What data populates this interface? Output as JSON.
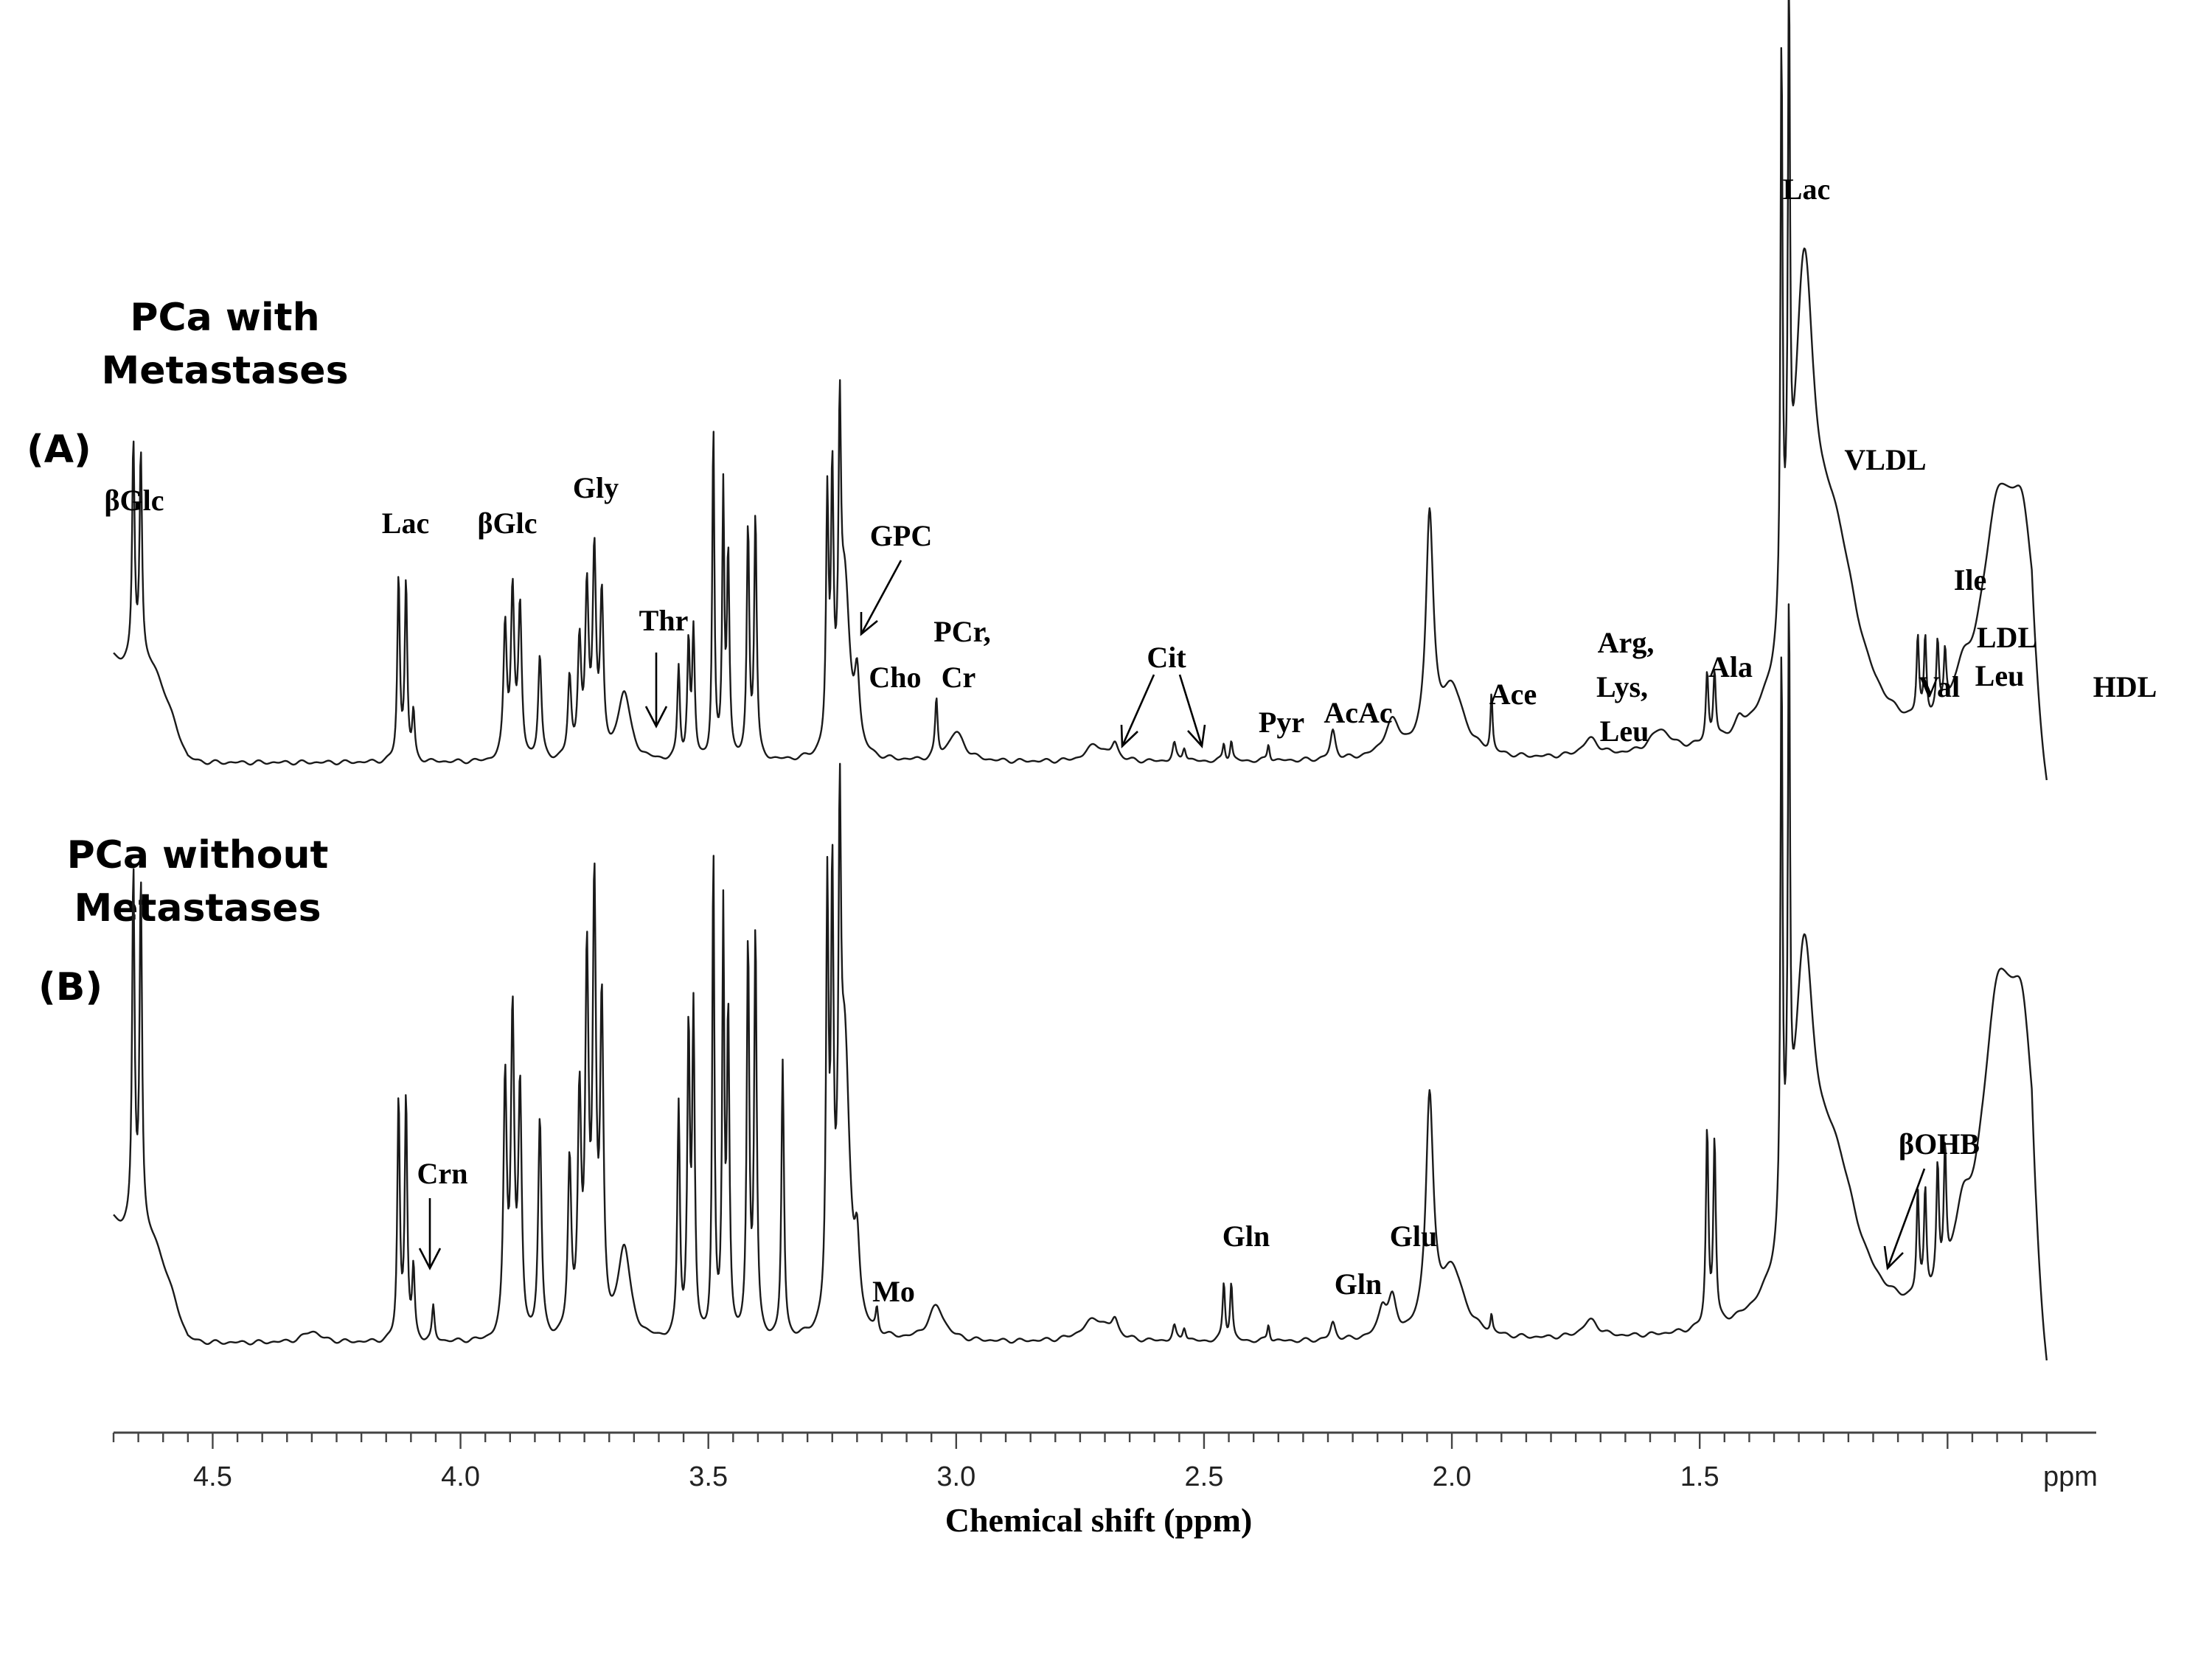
{
  "chart_data": {
    "type": "line",
    "xlabel": "Chemical shift (ppm)",
    "x_unit_label": "ppm",
    "x_reversed": true,
    "xlim": [
      4.7,
      0.7
    ],
    "x_ticks": [
      4.5,
      4.0,
      3.5,
      3.0,
      2.5,
      2.0,
      1.5
    ],
    "x_tick_labels": [
      "4.5",
      "4.0",
      "3.5",
      "3.0",
      "2.5",
      "2.0",
      "1.5"
    ],
    "y_axis_shown": false,
    "series": [
      {
        "name": "PCa with Metastases",
        "panel": "(A)",
        "title_lines": [
          "PCa with",
          "Metastases"
        ],
        "baseline": 0.03,
        "peaks": [
          [
            4.66,
            0.38,
            0.003
          ],
          [
            4.645,
            0.36,
            0.003
          ],
          [
            4.125,
            0.32,
            0.003
          ],
          [
            4.11,
            0.31,
            0.003
          ],
          [
            4.095,
            0.08,
            0.003
          ],
          [
            3.91,
            0.23,
            0.004
          ],
          [
            3.895,
            0.29,
            0.004
          ],
          [
            3.88,
            0.26,
            0.004
          ],
          [
            3.84,
            0.18,
            0.004
          ],
          [
            3.78,
            0.14,
            0.004
          ],
          [
            3.76,
            0.2,
            0.004
          ],
          [
            3.745,
            0.28,
            0.004
          ],
          [
            3.73,
            0.35,
            0.004
          ],
          [
            3.715,
            0.27,
            0.004
          ],
          [
            3.67,
            0.12,
            0.015
          ],
          [
            3.56,
            0.16,
            0.003
          ],
          [
            3.54,
            0.2,
            0.003
          ],
          [
            3.53,
            0.22,
            0.003
          ],
          [
            3.49,
            0.58,
            0.0025
          ],
          [
            3.47,
            0.46,
            0.0025
          ],
          [
            3.46,
            0.35,
            0.003
          ],
          [
            3.42,
            0.4,
            0.003
          ],
          [
            3.405,
            0.42,
            0.003
          ],
          [
            3.26,
            0.42,
            0.003
          ],
          [
            3.25,
            0.44,
            0.003
          ],
          [
            3.235,
            0.47,
            0.003
          ],
          [
            3.225,
            0.3,
            0.012
          ],
          [
            3.2,
            0.12,
            0.006
          ],
          [
            3.04,
            0.1,
            0.003
          ],
          [
            3.0,
            0.05,
            0.02
          ],
          [
            2.72,
            0.03,
            0.02
          ],
          [
            2.68,
            0.03,
            0.008
          ],
          [
            2.56,
            0.03,
            0.004
          ],
          [
            2.54,
            0.025,
            0.004
          ],
          [
            2.46,
            0.03,
            0.003
          ],
          [
            2.445,
            0.035,
            0.003
          ],
          [
            2.37,
            0.03,
            0.003
          ],
          [
            2.24,
            0.05,
            0.006
          ],
          [
            2.12,
            0.06,
            0.02
          ],
          [
            2.045,
            0.4,
            0.009
          ],
          [
            2.0,
            0.12,
            0.03
          ],
          [
            1.92,
            0.1,
            0.0025
          ],
          [
            1.72,
            0.03,
            0.02
          ],
          [
            1.58,
            0.04,
            0.025
          ],
          [
            1.485,
            0.12,
            0.003
          ],
          [
            1.47,
            0.12,
            0.003
          ],
          [
            1.42,
            0.02,
            0.01
          ],
          [
            1.335,
            1.0,
            0.0025
          ],
          [
            1.32,
            0.98,
            0.0025
          ],
          [
            1.29,
            0.7,
            0.025
          ],
          [
            1.23,
            0.35,
            0.06
          ],
          [
            1.06,
            0.14,
            0.003
          ],
          [
            1.045,
            0.14,
            0.003
          ],
          [
            1.02,
            0.12,
            0.003
          ],
          [
            1.005,
            0.1,
            0.003
          ],
          [
            0.97,
            0.06,
            0.02
          ],
          [
            0.9,
            0.35,
            0.04
          ],
          [
            0.85,
            0.32,
            0.035
          ]
        ]
      },
      {
        "name": "PCa without Metastases",
        "panel": "(B)",
        "title_lines": [
          "PCa without",
          "Metastases"
        ],
        "baseline": 0.03,
        "peaks": [
          [
            4.66,
            0.62,
            0.003
          ],
          [
            4.645,
            0.6,
            0.003
          ],
          [
            4.3,
            0.02,
            0.02
          ],
          [
            4.125,
            0.42,
            0.003
          ],
          [
            4.11,
            0.42,
            0.003
          ],
          [
            4.095,
            0.12,
            0.003
          ],
          [
            4.055,
            0.06,
            0.003
          ],
          [
            3.91,
            0.44,
            0.004
          ],
          [
            3.895,
            0.55,
            0.004
          ],
          [
            3.88,
            0.42,
            0.004
          ],
          [
            3.84,
            0.38,
            0.004
          ],
          [
            3.78,
            0.3,
            0.004
          ],
          [
            3.76,
            0.4,
            0.004
          ],
          [
            3.745,
            0.62,
            0.004
          ],
          [
            3.73,
            0.75,
            0.004
          ],
          [
            3.715,
            0.55,
            0.004
          ],
          [
            3.67,
            0.16,
            0.015
          ],
          [
            3.56,
            0.4,
            0.003
          ],
          [
            3.54,
            0.52,
            0.003
          ],
          [
            3.53,
            0.55,
            0.003
          ],
          [
            3.49,
            0.85,
            0.0025
          ],
          [
            3.47,
            0.72,
            0.0025
          ],
          [
            3.46,
            0.55,
            0.003
          ],
          [
            3.42,
            0.68,
            0.003
          ],
          [
            3.405,
            0.7,
            0.003
          ],
          [
            3.35,
            0.48,
            0.003
          ],
          [
            3.26,
            0.72,
            0.003
          ],
          [
            3.25,
            0.7,
            0.003
          ],
          [
            3.235,
            0.68,
            0.003
          ],
          [
            3.225,
            0.5,
            0.012
          ],
          [
            3.2,
            0.12,
            0.006
          ],
          [
            3.16,
            0.04,
            0.003
          ],
          [
            3.04,
            0.06,
            0.02
          ],
          [
            2.72,
            0.04,
            0.03
          ],
          [
            2.68,
            0.03,
            0.008
          ],
          [
            2.56,
            0.025,
            0.004
          ],
          [
            2.54,
            0.025,
            0.004
          ],
          [
            2.46,
            0.1,
            0.003
          ],
          [
            2.445,
            0.1,
            0.003
          ],
          [
            2.37,
            0.03,
            0.003
          ],
          [
            2.24,
            0.03,
            0.006
          ],
          [
            2.14,
            0.05,
            0.01
          ],
          [
            2.12,
            0.06,
            0.01
          ],
          [
            2.045,
            0.4,
            0.009
          ],
          [
            2.0,
            0.12,
            0.03
          ],
          [
            1.92,
            0.03,
            0.0025
          ],
          [
            1.72,
            0.03,
            0.02
          ],
          [
            1.485,
            0.34,
            0.003
          ],
          [
            1.47,
            0.32,
            0.003
          ],
          [
            1.335,
            1.0,
            0.0025
          ],
          [
            1.32,
            0.98,
            0.0025
          ],
          [
            1.29,
            0.55,
            0.025
          ],
          [
            1.23,
            0.28,
            0.06
          ],
          [
            1.06,
            0.18,
            0.003
          ],
          [
            1.045,
            0.18,
            0.003
          ],
          [
            1.02,
            0.2,
            0.003
          ],
          [
            1.005,
            0.22,
            0.003
          ],
          [
            0.97,
            0.1,
            0.02
          ],
          [
            0.9,
            0.48,
            0.04
          ],
          [
            0.85,
            0.42,
            0.035
          ]
        ]
      }
    ],
    "annotations": [
      {
        "series": 0,
        "text": "βGlc",
        "x": 4.66
      },
      {
        "series": 0,
        "text": "Lac",
        "x": 4.11
      },
      {
        "series": 0,
        "text": "βGlc",
        "x": 3.89
      },
      {
        "series": 0,
        "text": "Gly",
        "x": 3.73
      },
      {
        "series": 0,
        "text": "Thr",
        "x": 3.6
      },
      {
        "series": 0,
        "text": "GPC",
        "x": 3.22
      },
      {
        "series": 0,
        "text": "Cho",
        "x": 3.19
      },
      {
        "series": 0,
        "text": "PCr,",
        "x": 3.04
      },
      {
        "series": 0,
        "text": "Cr",
        "x": 3.04
      },
      {
        "series": 0,
        "text": "Cit",
        "x": 2.61
      },
      {
        "series": 0,
        "text": "Pyr",
        "x": 2.37
      },
      {
        "series": 0,
        "text": "AcAc",
        "x": 2.24
      },
      {
        "series": 0,
        "text": "Ace",
        "x": 1.92
      },
      {
        "series": 0,
        "text": "Arg,",
        "x": 1.72
      },
      {
        "series": 0,
        "text": "Lys,",
        "x": 1.72
      },
      {
        "series": 0,
        "text": "Leu",
        "x": 1.72
      },
      {
        "series": 0,
        "text": "Ala",
        "x": 1.48
      },
      {
        "series": 0,
        "text": "Lac",
        "x": 1.33
      },
      {
        "series": 0,
        "text": "VLDL",
        "x": 1.26
      },
      {
        "series": 0,
        "text": "Ile",
        "x": 1.01
      },
      {
        "series": 0,
        "text": "LDL",
        "x": 0.99
      },
      {
        "series": 0,
        "text": "Leu",
        "x": 0.99
      },
      {
        "series": 0,
        "text": "Val",
        "x": 1.04
      },
      {
        "series": 0,
        "text": "HDL",
        "x": 0.79
      },
      {
        "series": 1,
        "text": "Crn",
        "x": 4.05
      },
      {
        "series": 1,
        "text": "Mo",
        "x": 3.16
      },
      {
        "series": 1,
        "text": "Gln",
        "x": 2.46
      },
      {
        "series": 1,
        "text": "Gln",
        "x": 2.23
      },
      {
        "series": 1,
        "text": "Glu",
        "x": 2.1
      },
      {
        "series": 1,
        "text": "βOHB",
        "x": 1.19
      }
    ]
  }
}
